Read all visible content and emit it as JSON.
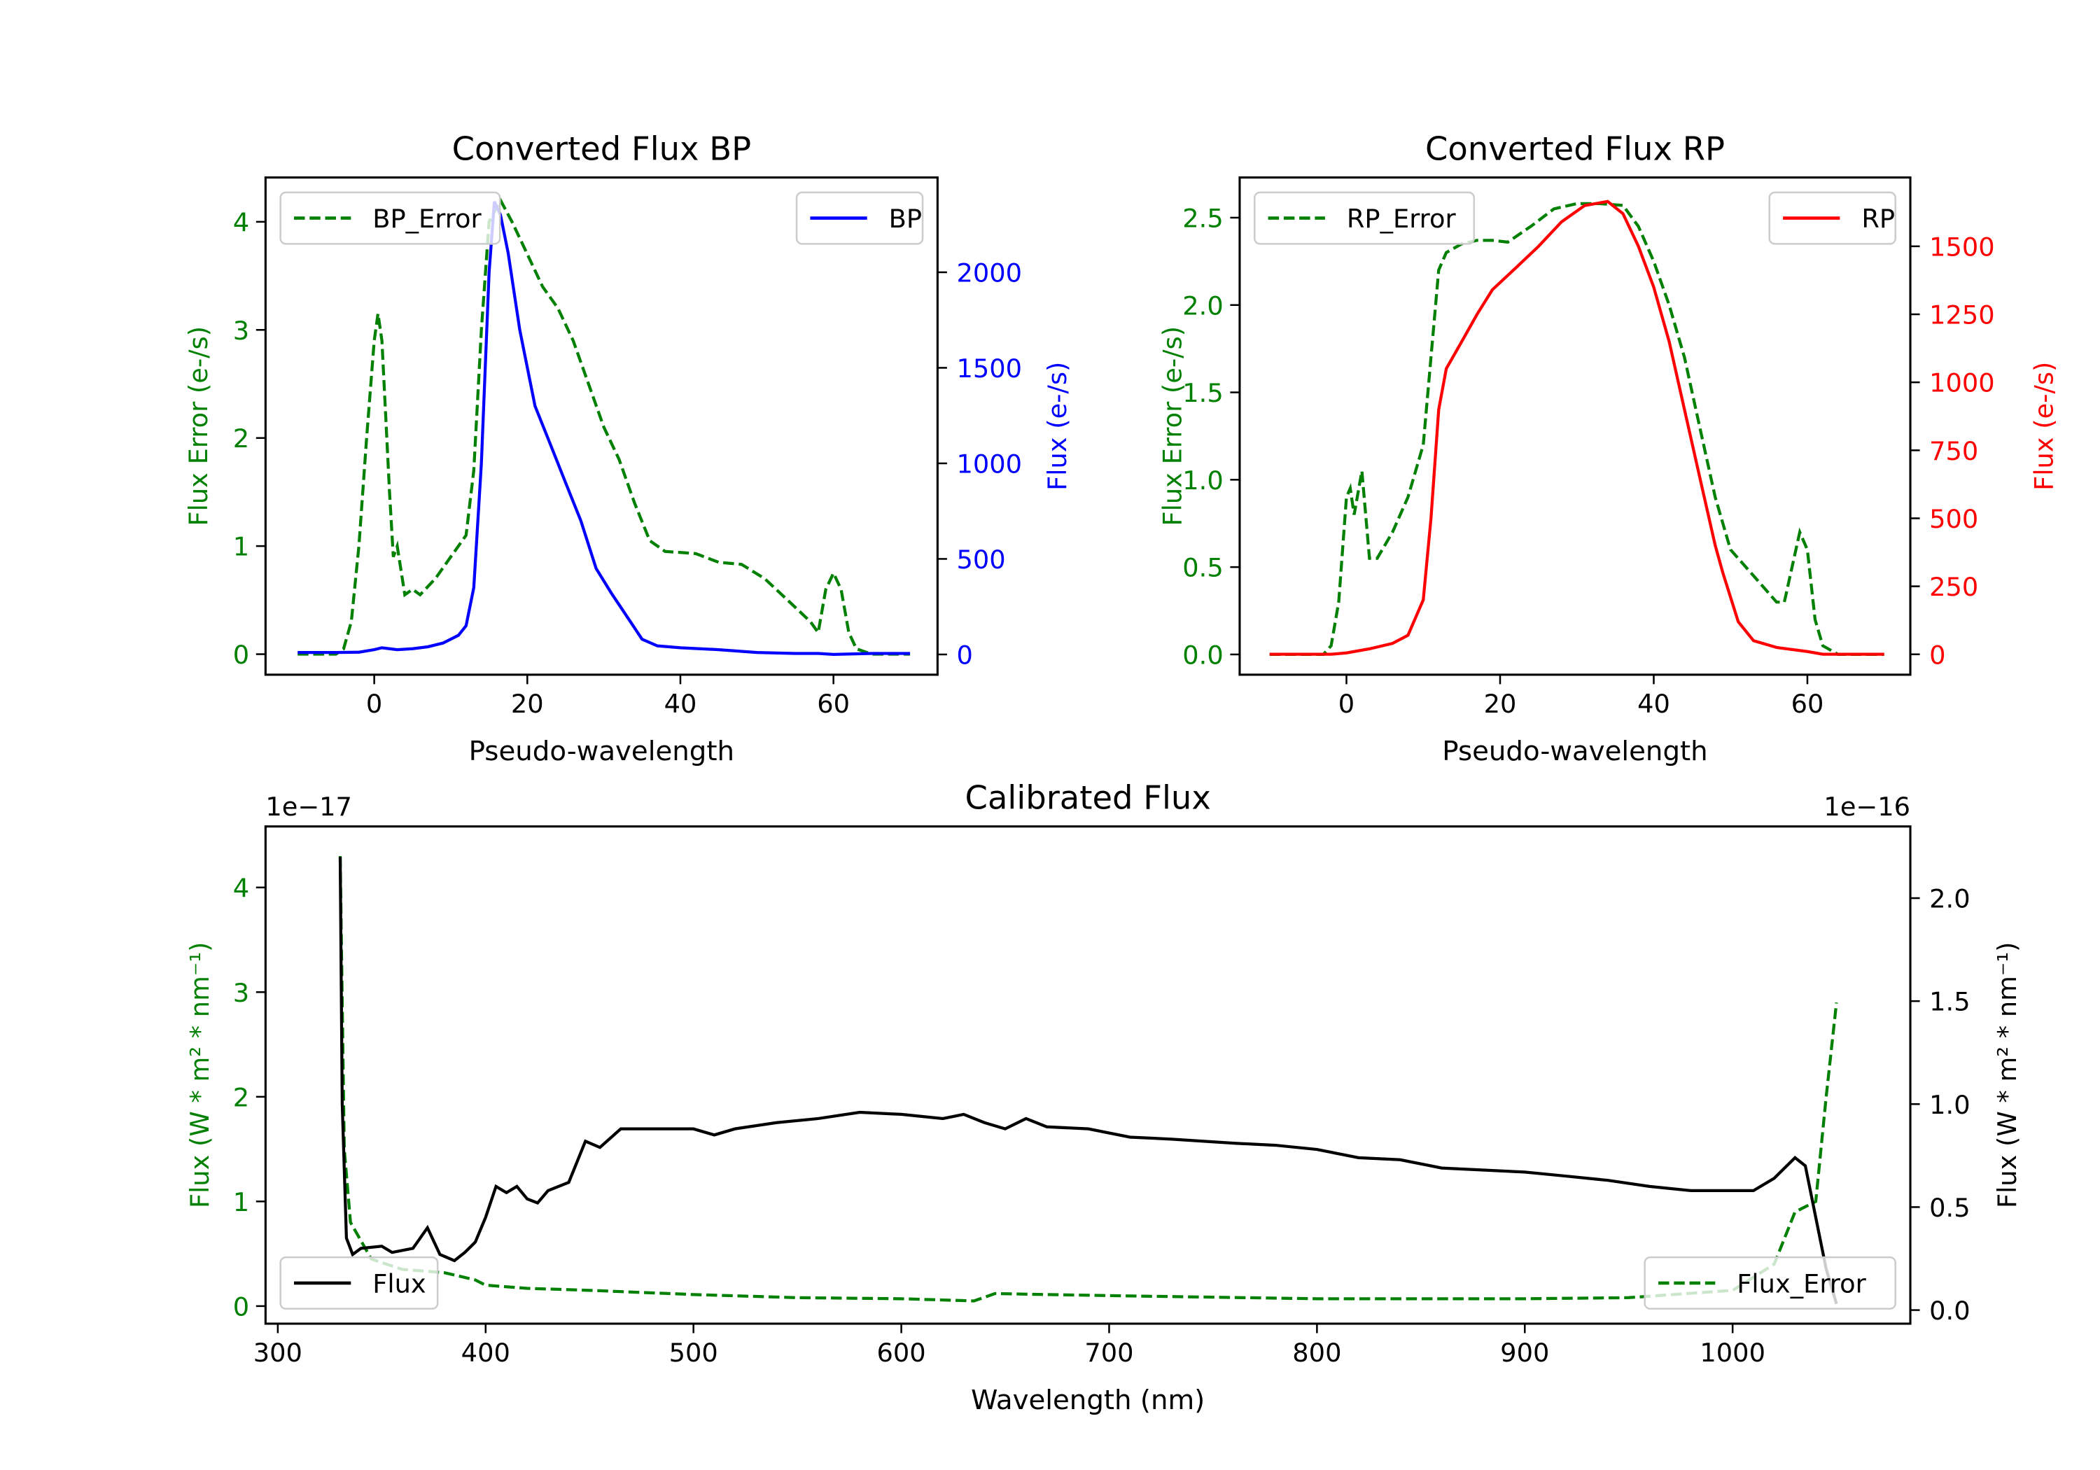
{
  "chart_data": [
    {
      "type": "line",
      "title": "Converted Flux BP",
      "xlabel": "Pseudo-wavelength",
      "ylabel_left": "Flux Error (e-/s)",
      "ylabel_right": "Flux (e-/s)",
      "xlim": [
        -14.2,
        73.6
      ],
      "ylim_left": [
        -0.19,
        4.41
      ],
      "ylim_right": [
        -106,
        2496
      ],
      "xticks": [
        0,
        20,
        40,
        60
      ],
      "yticks_left": [
        0,
        1,
        2,
        3,
        4
      ],
      "yticks_right": [
        0,
        500,
        1000,
        1500,
        2000
      ],
      "left_color": "#008000",
      "right_color": "#0000ff",
      "legend_left": {
        "label": "BP_Error",
        "placement": "upper-left"
      },
      "legend_right": {
        "label": "BP",
        "placement": "upper-right"
      },
      "series_left": {
        "name": "BP_Error",
        "style": "dashed",
        "x": [
          -10,
          -5,
          -4,
          -3,
          -2,
          -1,
          0,
          0.5,
          1,
          2,
          2.5,
          3,
          4,
          5,
          6,
          8,
          10,
          12,
          13,
          14,
          15,
          16.5,
          18,
          20,
          22,
          24,
          26,
          28,
          30,
          32,
          34,
          36,
          38,
          42,
          45,
          48,
          51,
          54,
          57,
          58,
          59,
          60,
          61,
          62,
          63,
          65,
          70
        ],
        "y": [
          0,
          0,
          0.05,
          0.3,
          1.0,
          2.0,
          2.9,
          3.15,
          2.9,
          1.5,
          0.9,
          1.0,
          0.55,
          0.6,
          0.55,
          0.7,
          0.9,
          1.1,
          1.7,
          3.0,
          4.0,
          4.2,
          4.0,
          3.7,
          3.4,
          3.2,
          2.9,
          2.5,
          2.1,
          1.8,
          1.4,
          1.05,
          0.95,
          0.93,
          0.85,
          0.83,
          0.7,
          0.5,
          0.3,
          0.2,
          0.6,
          0.75,
          0.6,
          0.2,
          0.05,
          0,
          0
        ]
      },
      "series_right": {
        "name": "BP",
        "style": "solid",
        "x": [
          -10,
          -5,
          -2,
          0,
          1,
          2,
          3,
          5,
          7,
          9,
          11,
          12,
          13,
          14,
          15,
          15.7,
          16.5,
          17.5,
          19,
          21,
          23,
          25,
          27,
          29,
          31,
          33,
          35,
          37,
          40,
          45,
          50,
          55,
          58,
          60,
          65,
          70
        ],
        "y": [
          10,
          10,
          12,
          25,
          35,
          30,
          25,
          30,
          40,
          60,
          100,
          150,
          350,
          1000,
          2000,
          2370,
          2300,
          2100,
          1700,
          1300,
          1100,
          900,
          700,
          450,
          320,
          200,
          80,
          45,
          35,
          25,
          10,
          5,
          5,
          0,
          5,
          5
        ]
      }
    },
    {
      "type": "line",
      "title": "Converted Flux RP",
      "xlabel": "Pseudo-wavelength",
      "ylabel_left": "Flux Error (e-/s)",
      "ylabel_right": "Flux (e-/s)",
      "xlim": [
        -13.9,
        73.4
      ],
      "ylim_left": [
        -0.116,
        2.73
      ],
      "ylim_right": [
        -75,
        1753
      ],
      "xticks": [
        0,
        20,
        40,
        60
      ],
      "yticks_left": [
        "0.0",
        "0.5",
        "1.0",
        "1.5",
        "2.0",
        "2.5"
      ],
      "yticks_right": [
        0,
        250,
        500,
        750,
        1000,
        1250,
        1500
      ],
      "left_color": "#008000",
      "right_color": "#ff0000",
      "legend_left": {
        "label": "RP_Error",
        "placement": "upper-left"
      },
      "legend_right": {
        "label": "RP",
        "placement": "upper-right"
      },
      "series_left": {
        "name": "RP_Error",
        "style": "dashed",
        "x": [
          -10,
          -3,
          -2,
          -1,
          0,
          0.5,
          1,
          2,
          3,
          4,
          6,
          8,
          10,
          11,
          12,
          13,
          15,
          17,
          19,
          21,
          24,
          27,
          30,
          33,
          36,
          38,
          40,
          42,
          44,
          46,
          48,
          50,
          53,
          56,
          57,
          58,
          59,
          60,
          61,
          62,
          64,
          70
        ],
        "y": [
          0,
          0,
          0.05,
          0.3,
          0.9,
          0.95,
          0.8,
          1.05,
          0.55,
          0.55,
          0.7,
          0.9,
          1.2,
          1.7,
          2.2,
          2.3,
          2.35,
          2.37,
          2.37,
          2.36,
          2.45,
          2.55,
          2.58,
          2.58,
          2.57,
          2.45,
          2.25,
          2.0,
          1.7,
          1.3,
          0.9,
          0.6,
          0.45,
          0.3,
          0.3,
          0.5,
          0.7,
          0.6,
          0.2,
          0.05,
          0,
          0
        ]
      },
      "series_right": {
        "name": "RP",
        "style": "solid",
        "x": [
          -10,
          -2,
          0,
          3,
          6,
          8,
          10,
          11,
          12,
          13,
          15,
          17,
          19,
          22,
          25,
          28,
          31,
          34,
          36,
          38,
          40,
          42,
          44,
          46,
          48,
          49,
          51,
          53,
          56,
          60,
          62,
          70
        ],
        "y": [
          0,
          0,
          5,
          20,
          40,
          70,
          200,
          500,
          900,
          1050,
          1150,
          1250,
          1340,
          1420,
          1500,
          1590,
          1650,
          1665,
          1620,
          1500,
          1350,
          1150,
          900,
          650,
          400,
          300,
          120,
          50,
          25,
          10,
          0,
          0
        ]
      }
    },
    {
      "type": "line",
      "title": "Calibrated Flux",
      "xlabel": "Wavelength (nm)",
      "ylabel_left": "Flux (W * m² * nm⁻¹)",
      "ylabel_right": "Flux (W * m² * nm⁻¹)",
      "offset_left": "1e−17",
      "offset_right": "1e−16",
      "xlim": [
        294.1,
        1085.5
      ],
      "ylim_left": [
        -0.168,
        4.583
      ],
      "ylim_right": [
        -0.066,
        2.348
      ],
      "xticks": [
        300,
        400,
        500,
        600,
        700,
        800,
        900,
        1000
      ],
      "yticks_left": [
        0,
        1,
        2,
        3,
        4
      ],
      "yticks_right": [
        "0.0",
        "0.5",
        "1.0",
        "1.5",
        "2.0"
      ],
      "left_color": "#008000",
      "right_color": "#000000",
      "legend_left": {
        "label": "Flux_Error",
        "placement": "lower-right"
      },
      "legend_right": {
        "label": "Flux",
        "placement": "lower-left"
      },
      "series_left": {
        "name": "Flux_Error",
        "style": "dashed",
        "x": [
          330,
          332,
          335,
          345,
          360,
          380,
          395,
          400,
          420,
          450,
          500,
          550,
          600,
          635,
          645,
          700,
          800,
          900,
          950,
          1000,
          1020,
          1030,
          1040,
          1045,
          1050
        ],
        "y": [
          4.3,
          1.5,
          0.8,
          0.45,
          0.35,
          0.32,
          0.25,
          0.2,
          0.17,
          0.15,
          0.11,
          0.08,
          0.07,
          0.05,
          0.12,
          0.1,
          0.07,
          0.07,
          0.08,
          0.15,
          0.4,
          0.9,
          1.0,
          2.0,
          2.9
        ]
      },
      "series_right": {
        "name": "Flux",
        "style": "solid",
        "x": [
          330,
          331,
          333,
          336,
          340,
          350,
          355,
          365,
          372,
          378,
          385,
          390,
          395,
          400,
          405,
          410,
          415,
          420,
          425,
          430,
          440,
          448,
          455,
          465,
          480,
          490,
          500,
          510,
          520,
          540,
          560,
          580,
          600,
          620,
          630,
          640,
          650,
          660,
          670,
          690,
          710,
          730,
          760,
          780,
          800,
          820,
          840,
          860,
          880,
          900,
          920,
          940,
          960,
          980,
          1000,
          1010,
          1020,
          1030,
          1035,
          1040,
          1045,
          1050
        ],
        "y": [
          2.2,
          1.0,
          0.35,
          0.27,
          0.3,
          0.31,
          0.28,
          0.3,
          0.4,
          0.27,
          0.24,
          0.28,
          0.33,
          0.45,
          0.6,
          0.57,
          0.6,
          0.54,
          0.52,
          0.58,
          0.62,
          0.82,
          0.79,
          0.88,
          0.88,
          0.88,
          0.88,
          0.85,
          0.88,
          0.91,
          0.93,
          0.96,
          0.95,
          0.93,
          0.95,
          0.91,
          0.88,
          0.93,
          0.89,
          0.88,
          0.84,
          0.83,
          0.81,
          0.8,
          0.78,
          0.74,
          0.73,
          0.69,
          0.68,
          0.67,
          0.65,
          0.63,
          0.6,
          0.58,
          0.58,
          0.58,
          0.64,
          0.74,
          0.7,
          0.45,
          0.2,
          0.03
        ]
      }
    }
  ]
}
